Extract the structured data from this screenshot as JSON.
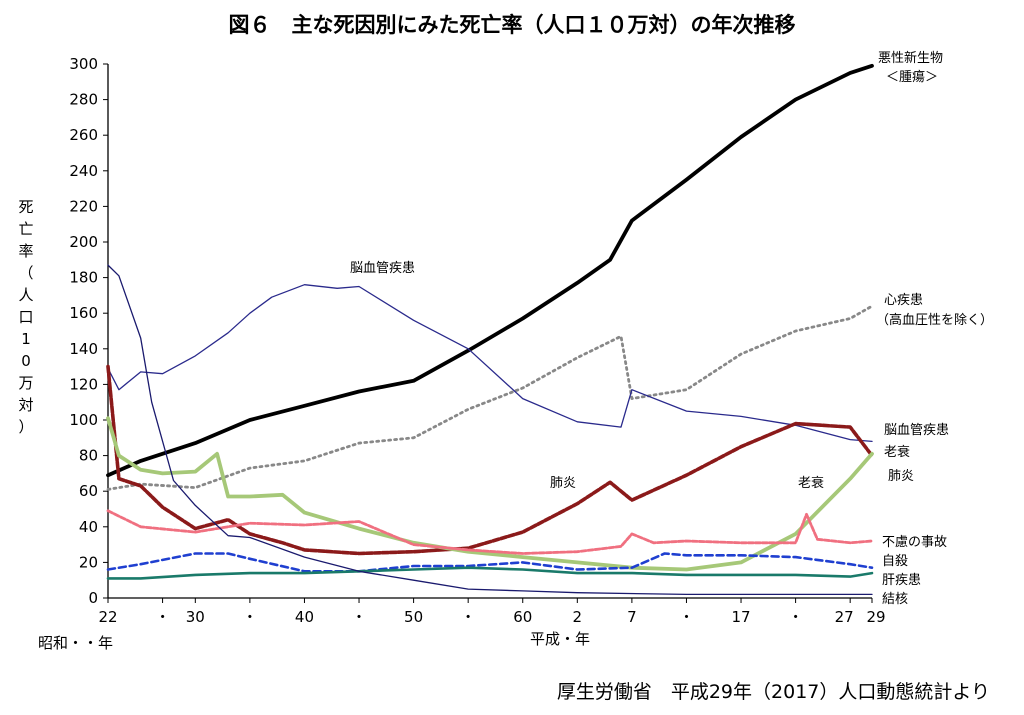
{
  "chart_data": {
    "type": "line",
    "title": "図６　主な死因別にみた死亡率（人口１０万対）の年次推移",
    "ylabel": "死亡率（人口10万対）",
    "ylim": [
      0,
      300
    ],
    "yticks": [
      0,
      20,
      40,
      60,
      80,
      100,
      120,
      140,
      160,
      180,
      200,
      220,
      240,
      260,
      280,
      300
    ],
    "xlim": [
      1947,
      2017
    ],
    "xticks": [
      {
        "x": 1947,
        "label": "22"
      },
      {
        "x": 1952,
        "label": "・"
      },
      {
        "x": 1955,
        "label": "30"
      },
      {
        "x": 1960,
        "label": "・"
      },
      {
        "x": 1965,
        "label": "40"
      },
      {
        "x": 1970,
        "label": "・"
      },
      {
        "x": 1975,
        "label": "50"
      },
      {
        "x": 1980,
        "label": "・"
      },
      {
        "x": 1985,
        "label": "60"
      },
      {
        "x": 1990,
        "label": "2"
      },
      {
        "x": 1995,
        "label": "7"
      },
      {
        "x": 2000,
        "label": "・"
      },
      {
        "x": 2005,
        "label": "17"
      },
      {
        "x": 2010,
        "label": "・"
      },
      {
        "x": 2015,
        "label": "27"
      },
      {
        "x": 2017,
        "label": "29"
      }
    ],
    "era_labels": {
      "showa": "昭和・・年",
      "heisei": "平成・年"
    },
    "grid": false,
    "series": [
      {
        "name": "悪性新生物＜腫瘍＞",
        "color": "#000000",
        "style": "solid-thick",
        "x": [
          1947,
          1950,
          1955,
          1960,
          1965,
          1970,
          1975,
          1980,
          1985,
          1990,
          1993,
          1995,
          2000,
          2005,
          2010,
          2015,
          2017
        ],
        "y": [
          69,
          77,
          87,
          100,
          108,
          116,
          122,
          139,
          157,
          177,
          190,
          212,
          235,
          259,
          280,
          295,
          299
        ]
      },
      {
        "name": "心疾患（高血圧性を除く）",
        "color": "#888888",
        "style": "dotted",
        "x": [
          1947,
          1950,
          1955,
          1960,
          1965,
          1970,
          1975,
          1980,
          1985,
          1990,
          1994,
          1995,
          2000,
          2005,
          2010,
          2015,
          2017
        ],
        "y": [
          61,
          64,
          62,
          73,
          77,
          87,
          90,
          106,
          118,
          135,
          147,
          112,
          117,
          137,
          150,
          157,
          164
        ]
      },
      {
        "name": "脳血管疾患",
        "color": "#2a2a8c",
        "style": "solid-thin",
        "x": [
          1947,
          1948,
          1950,
          1952,
          1955,
          1958,
          1960,
          1962,
          1965,
          1968,
          1970,
          1975,
          1980,
          1985,
          1990,
          1994,
          1995,
          2000,
          2005,
          2010,
          2015,
          2017
        ],
        "y": [
          129,
          117,
          127,
          126,
          136,
          149,
          160,
          169,
          176,
          174,
          175,
          156,
          140,
          112,
          99,
          96,
          117,
          105,
          102,
          97,
          89,
          88
        ]
      },
      {
        "name": "肺炎",
        "color": "#8b1a1a",
        "style": "dashed-dark",
        "x": [
          1947,
          1948,
          1950,
          1952,
          1955,
          1958,
          1960,
          1963,
          1965,
          1970,
          1975,
          1980,
          1985,
          1990,
          1993,
          1995,
          2000,
          2005,
          2010,
          2015,
          2017
        ],
        "y": [
          130,
          67,
          63,
          51,
          39,
          44,
          36,
          31,
          27,
          25,
          26,
          28,
          37,
          53,
          65,
          55,
          69,
          85,
          98,
          96,
          80
        ]
      },
      {
        "name": "老衰",
        "color": "#a6c878",
        "style": "solid-thick",
        "x": [
          1947,
          1948,
          1950,
          1952,
          1955,
          1957,
          1958,
          1960,
          1963,
          1965,
          1970,
          1975,
          1980,
          1985,
          1990,
          1995,
          2000,
          2005,
          2010,
          2015,
          2017
        ],
        "y": [
          101,
          80,
          72,
          70,
          71,
          81,
          57,
          57,
          58,
          48,
          39,
          31,
          26,
          23,
          20,
          17,
          16,
          20,
          36,
          67,
          81
        ]
      },
      {
        "name": "不慮の事故",
        "color": "#f07080",
        "style": "dashed-light",
        "x": [
          1947,
          1950,
          1955,
          1960,
          1965,
          1970,
          1975,
          1980,
          1985,
          1990,
          1994,
          1995,
          1997,
          2000,
          2005,
          2010,
          2011,
          2012,
          2015,
          2017
        ],
        "y": [
          49,
          40,
          37,
          42,
          41,
          43,
          30,
          27,
          25,
          26,
          29,
          36,
          31,
          32,
          31,
          31,
          47,
          33,
          31,
          32
        ]
      },
      {
        "name": "自殺",
        "color": "#1f3fd0",
        "style": "dashed-blue",
        "x": [
          1947,
          1950,
          1955,
          1958,
          1960,
          1965,
          1970,
          1975,
          1980,
          1985,
          1990,
          1995,
          1998,
          2000,
          2005,
          2010,
          2015,
          2017
        ],
        "y": [
          16,
          19,
          25,
          25,
          22,
          15,
          15,
          18,
          18,
          20,
          16,
          17,
          25,
          24,
          24,
          23,
          19,
          17
        ]
      },
      {
        "name": "肝疾患",
        "color": "#1a7a6a",
        "style": "solid-medium",
        "x": [
          1947,
          1950,
          1955,
          1960,
          1965,
          1970,
          1975,
          1980,
          1985,
          1990,
          1995,
          2000,
          2005,
          2010,
          2015,
          2017
        ],
        "y": [
          11,
          11,
          13,
          14,
          14,
          15,
          16,
          17,
          16,
          14,
          14,
          13,
          13,
          13,
          12,
          14
        ]
      },
      {
        "name": "結核",
        "color": "#1a1a6e",
        "style": "solid-thin",
        "x": [
          1947,
          1948,
          1950,
          1951,
          1953,
          1955,
          1958,
          1960,
          1965,
          1970,
          1975,
          1980,
          1985,
          1990,
          2000,
          2010,
          2017
        ],
        "y": [
          187,
          181,
          146,
          110,
          66,
          52,
          35,
          34,
          23,
          15,
          10,
          5,
          4,
          3,
          2,
          2,
          2
        ]
      }
    ],
    "annotations": [
      {
        "text": "悪性新生物"
      },
      {
        "text": "＜腫瘍＞"
      },
      {
        "text": "脳血管疾患"
      },
      {
        "text": "心疾患"
      },
      {
        "text": "（高血圧性を除く）"
      },
      {
        "text": "脳血管疾患"
      },
      {
        "text": "老衰"
      },
      {
        "text": "肺炎"
      },
      {
        "text": "肺炎"
      },
      {
        "text": "老衰"
      },
      {
        "text": "不慮の事故"
      },
      {
        "text": "自殺"
      },
      {
        "text": "肝疾患"
      },
      {
        "text": "結核"
      }
    ]
  },
  "source": "厚生労働省　平成29年（2017）人口動態統計より"
}
